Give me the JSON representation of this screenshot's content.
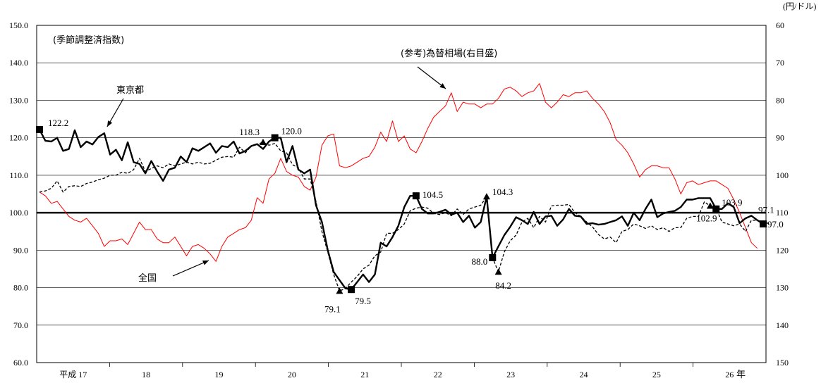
{
  "chart_data": {
    "type": "line",
    "unit_right": "(円/ドル)",
    "index_label": "(季節調整済指数)",
    "y_left": {
      "min": 60,
      "max": 150,
      "ticks": [
        "60.0",
        "70.0",
        "80.0",
        "90.0",
        "100.0",
        "110.0",
        "120.0",
        "130.0",
        "140.0",
        "150.0"
      ]
    },
    "y_right": {
      "min": 60,
      "max": 150,
      "inverted": true,
      "ticks": [
        "150",
        "140",
        "130",
        "120",
        "110",
        "100",
        "90",
        "80",
        "70",
        "60"
      ]
    },
    "x_labels": [
      "平成 17",
      "18",
      "19",
      "20",
      "21",
      "22",
      "23",
      "24",
      "25",
      "26"
    ],
    "x_suffix": "年",
    "reference_line": 100,
    "series": [
      {
        "name": "東京都",
        "color": "#000000",
        "style": "solid-bold",
        "values": [
          122.2,
          119.2,
          119.0,
          120.0,
          116.5,
          117.0,
          122.0,
          117.5,
          119.0,
          118.2,
          120.2,
          121.2,
          115.5,
          116.8,
          114.0,
          118.8,
          113.5,
          113.0,
          110.5,
          113.8,
          111.0,
          108.5,
          111.5,
          112.0,
          115.0,
          113.5,
          117.2,
          116.5,
          117.5,
          118.5,
          116.0,
          117.8,
          117.5,
          119.0,
          115.8,
          116.5,
          117.8,
          118.3,
          117.0,
          119.0,
          120.0,
          120.0,
          113.5,
          117.8,
          111.5,
          110.5,
          111.5,
          102.0,
          97.5,
          90.0,
          84.2,
          82.0,
          79.8,
          79.5,
          81.5,
          83.5,
          81.5,
          83.5,
          92.0,
          91.0,
          93.5,
          96.5,
          101.5,
          104.5,
          104.5,
          101.0,
          99.8,
          99.8,
          100.2,
          100.8,
          99.5,
          100.0,
          97.5,
          99.2,
          96.0,
          97.5,
          104.3,
          88.0,
          91.0,
          94.0,
          96.2,
          98.8,
          98.0,
          97.0,
          100.2,
          97.0,
          99.0,
          99.2,
          96.5,
          98.2,
          101.0,
          99.2,
          99.0,
          97.0,
          97.2,
          96.8,
          97.0,
          97.5,
          98.0,
          99.0,
          96.5,
          100.0,
          98.0,
          101.0,
          103.5,
          98.8,
          99.8,
          100.2,
          100.5,
          101.5,
          103.5,
          103.5,
          103.9,
          103.9,
          103.9,
          101.0,
          101.0,
          102.5,
          101.5,
          97.2,
          98.5,
          99.2,
          98.0,
          97.0
        ]
      },
      {
        "name": "全国",
        "color": "#000000",
        "style": "dashed",
        "values": [
          105.5,
          105.8,
          106.5,
          108.5,
          105.5,
          107.0,
          107.2,
          107.0,
          107.8,
          108.2,
          108.8,
          109.2,
          110.0,
          110.0,
          110.8,
          110.5,
          111.5,
          114.5,
          111.0,
          111.8,
          112.5,
          112.0,
          113.0,
          112.5,
          113.0,
          113.5,
          113.0,
          113.5,
          113.0,
          113.2,
          114.0,
          114.8,
          115.0,
          114.8,
          117.5,
          116.0,
          117.8,
          118.3,
          118.8,
          118.0,
          118.5,
          116.5,
          116.0,
          112.8,
          112.0,
          109.0,
          109.0,
          103.0,
          95.0,
          89.5,
          83.5,
          79.1,
          79.8,
          81.5,
          83.0,
          85.0,
          86.0,
          88.5,
          89.5,
          94.5,
          94.5,
          95.5,
          97.0,
          100.5,
          101.2,
          101.5,
          101.2,
          99.8,
          99.5,
          100.0,
          99.2,
          101.0,
          99.5,
          101.0,
          101.5,
          102.0,
          104.3,
          88.0,
          84.2,
          89.5,
          92.5,
          94.0,
          97.5,
          98.5,
          96.0,
          99.0,
          97.5,
          101.8,
          102.0,
          102.0,
          102.2,
          100.0,
          99.0,
          97.5,
          96.2,
          94.2,
          93.0,
          93.5,
          92.0,
          95.0,
          95.5,
          97.0,
          96.5,
          95.8,
          96.5,
          95.5,
          96.0,
          95.0,
          96.0,
          96.0,
          98.5,
          99.0,
          99.0,
          102.9,
          101.8,
          101.2,
          97.5,
          97.0,
          96.5,
          97.0,
          95.0,
          98.0,
          98.0,
          97.5,
          97.1
        ]
      },
      {
        "name": "(参考)為替相場(右目盛)",
        "color": "#ff0000",
        "style": "solid-thin",
        "values": [
          104.5,
          105.5,
          107.5,
          107.0,
          109.0,
          111.0,
          112.0,
          112.5,
          111.5,
          113.5,
          115.5,
          119.0,
          117.5,
          117.5,
          117.0,
          118.5,
          115.5,
          112.5,
          114.5,
          114.5,
          117.0,
          118.0,
          118.0,
          116.5,
          119.0,
          121.5,
          119.0,
          118.5,
          119.5,
          121.0,
          123.0,
          119.0,
          116.5,
          115.5,
          114.5,
          114.0,
          112.0,
          106.0,
          107.5,
          101.0,
          99.5,
          95.5,
          99.0,
          100.0,
          100.5,
          103.0,
          104.0,
          100.5,
          92.0,
          89.5,
          89.0,
          97.5,
          98.0,
          97.5,
          96.5,
          95.5,
          95.0,
          92.5,
          88.5,
          91.0,
          85.5,
          91.0,
          89.5,
          93.0,
          94.0,
          91.0,
          87.5,
          84.5,
          83.0,
          81.5,
          78.0,
          83.0,
          80.5,
          81.0,
          81.0,
          82.0,
          81.0,
          81.0,
          79.5,
          77.0,
          76.5,
          77.5,
          79.0,
          78.0,
          77.5,
          75.5,
          80.5,
          82.0,
          80.5,
          78.5,
          79.0,
          78.0,
          78.0,
          77.5,
          79.5,
          81.0,
          83.0,
          86.0,
          90.5,
          92.0,
          94.0,
          97.0,
          100.5,
          98.5,
          97.5,
          97.5,
          98.0,
          98.0,
          101.0,
          105.0,
          102.0,
          101.5,
          102.5,
          102.0,
          101.5,
          101.5,
          102.5,
          103.5,
          106.5,
          110.0,
          114.0,
          118.0,
          119.5
        ]
      }
    ],
    "point_labels": [
      {
        "text": "122.2"
      },
      {
        "text": "118.3"
      },
      {
        "text": "120.0"
      },
      {
        "text": "79.1"
      },
      {
        "text": "79.5"
      },
      {
        "text": "104.5"
      },
      {
        "text": "104.3"
      },
      {
        "text": "88.0"
      },
      {
        "text": "84.2"
      },
      {
        "text": "103.9"
      },
      {
        "text": "102.9"
      },
      {
        "text": "97.1"
      },
      {
        "text": "97.0"
      }
    ],
    "annotations": [
      {
        "text": "東京都"
      },
      {
        "text": "全国"
      },
      {
        "text": "(参考)為替相場(右目盛)"
      }
    ]
  }
}
